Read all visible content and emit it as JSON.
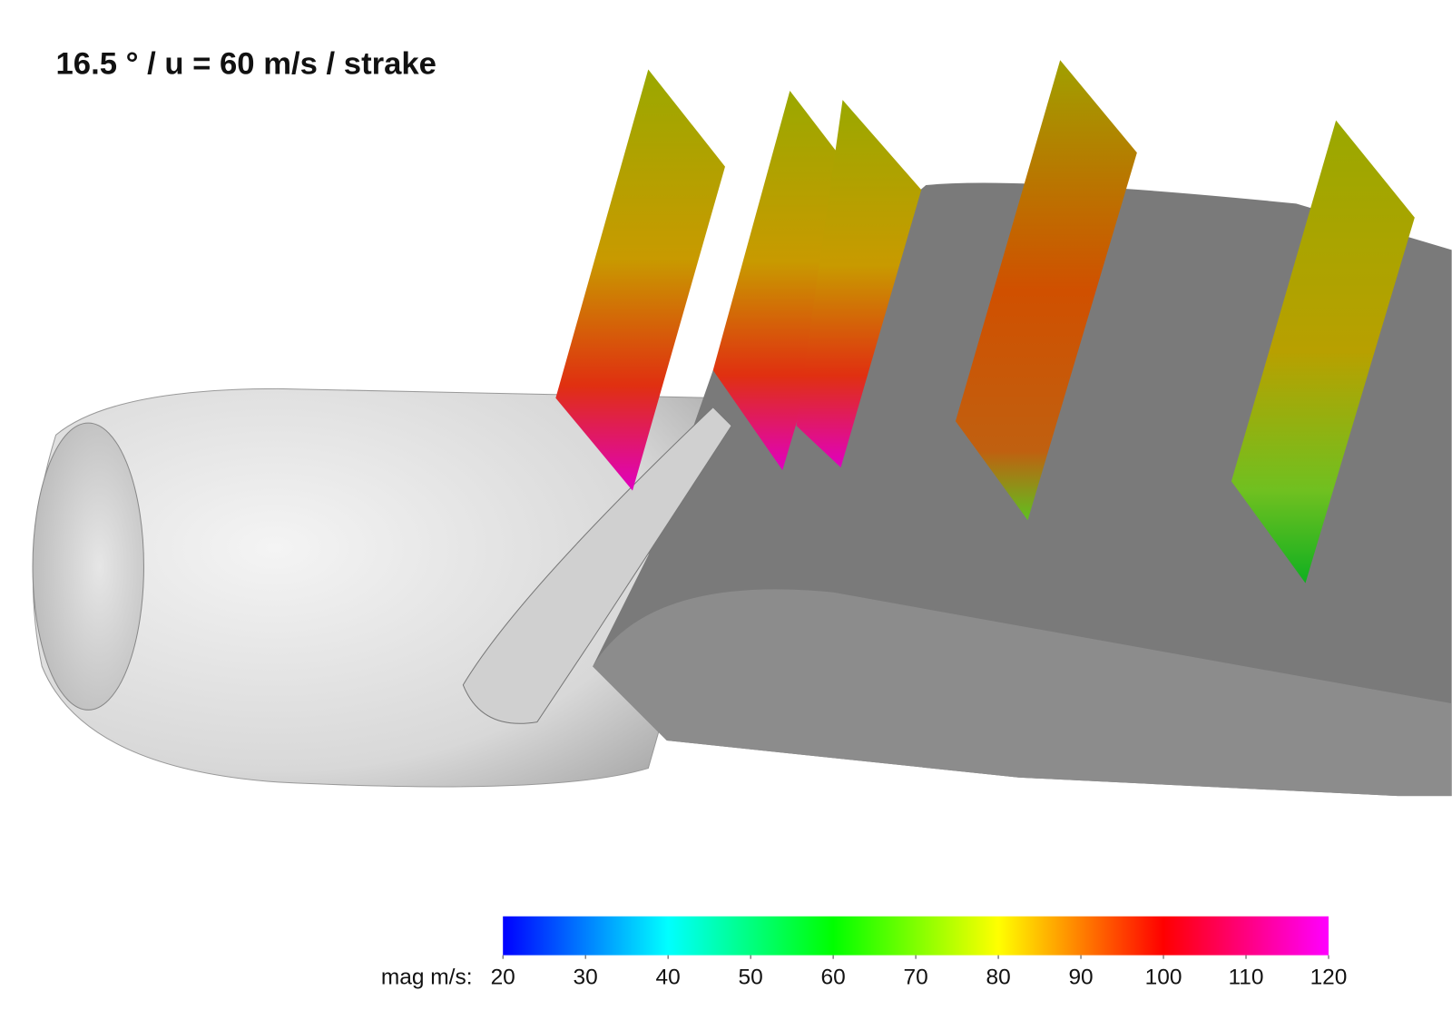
{
  "title": "16.5 ° / u = 60 m/s / strake",
  "colorbar": {
    "label": "mag m/s:",
    "lim": [
      20,
      120
    ],
    "ticks": [
      20,
      30,
      40,
      50,
      60,
      70,
      80,
      90,
      100,
      110,
      120
    ],
    "colors": [
      "#0000ff",
      "#00ffff",
      "#00ff00",
      "#ffff00",
      "#ff0000",
      "#ff00ff"
    ]
  }
}
